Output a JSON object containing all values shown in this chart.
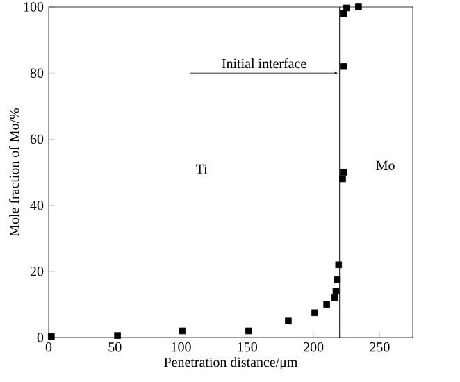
{
  "chart_data": {
    "type": "scatter",
    "xlabel": "Penetration distance/μm",
    "ylabel": "Mole fraction of Mo/%",
    "marker": "square",
    "grid": false,
    "xlim": [
      0,
      275
    ],
    "ylim": [
      0,
      100
    ],
    "xticks": [
      0,
      50,
      100,
      150,
      200,
      250
    ],
    "yticks": [
      0,
      20,
      40,
      60,
      80,
      100
    ],
    "series": [
      {
        "color": "#000000",
        "x": [
          2,
          52,
          101,
          151,
          181,
          201,
          210,
          216,
          217,
          218,
          219,
          222,
          223,
          223,
          223,
          225,
          234
        ],
        "values": [
          0.3,
          0.6,
          2,
          2,
          5,
          7.5,
          10,
          12,
          14,
          17.5,
          22,
          48,
          50,
          82,
          98,
          99.7,
          100
        ]
      }
    ],
    "ref_lines": [
      {
        "axis": "x",
        "value": 220,
        "label": "Initial interface",
        "color": "#000000"
      }
    ],
    "annotations": [
      "Ti",
      "Mo"
    ]
  }
}
